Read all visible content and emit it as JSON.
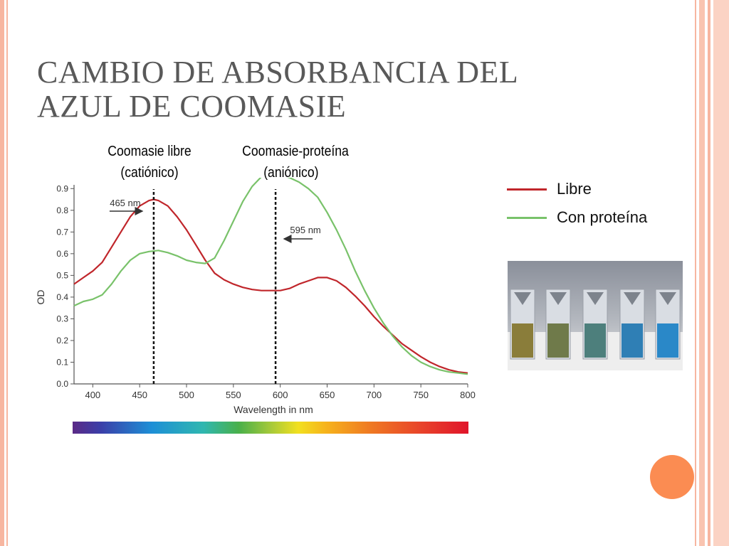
{
  "slide": {
    "title_line1": "CAMBIO DE ABSORBANCIA  DEL",
    "title_line2": "AZUL DE COOMASIE"
  },
  "annotations": {
    "free_line1": "Coomasie libre",
    "free_line2": "(catiónico)",
    "bound_line1": "Coomasie-proteína",
    "bound_line2": "(aniónico)"
  },
  "legend": [
    {
      "label": "Libre",
      "color": "#c0262b"
    },
    {
      "label": "Con proteína",
      "color": "#79c26a"
    }
  ],
  "chart_data": {
    "type": "line",
    "xlabel": "Wavelength in nm",
    "ylabel": "OD",
    "xlim": [
      380,
      800
    ],
    "ylim": [
      0,
      0.95
    ],
    "xticks": [
      400,
      450,
      500,
      550,
      600,
      650,
      700,
      750,
      800
    ],
    "yticks": [
      0.0,
      0.1,
      0.2,
      0.3,
      0.4,
      0.5,
      0.6,
      0.7,
      0.8,
      0.9
    ],
    "ytick_labels": [
      "0.0",
      "0.1",
      "0.2",
      "0.3",
      "0.4",
      "0.5",
      "0.6",
      "0.7",
      "0.8",
      "0.9"
    ],
    "series": [
      {
        "color": "#c0262b",
        "x": [
          380,
          390,
          400,
          410,
          420,
          430,
          440,
          450,
          460,
          465,
          470,
          480,
          490,
          500,
          510,
          520,
          530,
          540,
          550,
          560,
          570,
          580,
          590,
          600,
          610,
          620,
          630,
          640,
          650,
          660,
          670,
          680,
          690,
          700,
          710,
          720,
          730,
          740,
          750,
          760,
          770,
          780,
          790,
          800
        ],
        "y": [
          0.46,
          0.49,
          0.52,
          0.56,
          0.63,
          0.7,
          0.77,
          0.82,
          0.845,
          0.85,
          0.845,
          0.82,
          0.77,
          0.71,
          0.64,
          0.57,
          0.51,
          0.48,
          0.46,
          0.445,
          0.435,
          0.43,
          0.43,
          0.43,
          0.44,
          0.46,
          0.475,
          0.49,
          0.49,
          0.475,
          0.445,
          0.405,
          0.36,
          0.31,
          0.265,
          0.225,
          0.185,
          0.155,
          0.125,
          0.1,
          0.08,
          0.065,
          0.055,
          0.05
        ]
      },
      {
        "color": "#79c26a",
        "x": [
          380,
          390,
          400,
          410,
          420,
          430,
          440,
          450,
          460,
          470,
          480,
          490,
          500,
          510,
          520,
          530,
          540,
          550,
          560,
          570,
          580,
          590,
          595,
          600,
          610,
          620,
          630,
          640,
          650,
          660,
          670,
          680,
          690,
          700,
          710,
          720,
          730,
          740,
          750,
          760,
          770,
          780,
          790,
          800
        ],
        "y": [
          0.36,
          0.38,
          0.39,
          0.41,
          0.46,
          0.52,
          0.57,
          0.6,
          0.61,
          0.615,
          0.605,
          0.59,
          0.57,
          0.56,
          0.555,
          0.58,
          0.66,
          0.75,
          0.84,
          0.91,
          0.955,
          0.97,
          0.97,
          0.965,
          0.95,
          0.93,
          0.9,
          0.86,
          0.79,
          0.71,
          0.62,
          0.52,
          0.43,
          0.35,
          0.28,
          0.22,
          0.17,
          0.13,
          0.1,
          0.08,
          0.065,
          0.055,
          0.05,
          0.045
        ]
      }
    ],
    "vlines": [
      {
        "x": 465,
        "label": "465 nm",
        "arrow": "right"
      },
      {
        "x": 595,
        "label": "595 nm",
        "arrow": "left"
      }
    ]
  }
}
